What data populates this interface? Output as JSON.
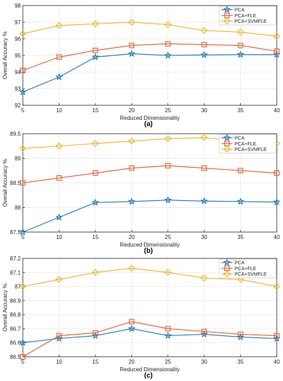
{
  "colors": {
    "pca": "#1f77b4",
    "pca_fle": "#e8582a",
    "pca_svmfle": "#f0b323",
    "axis": "#262626",
    "grid": "#e6e6e6"
  },
  "chart_data": [
    {
      "type": "line",
      "panel_label": "(a)",
      "xlabel": "Reduced Dimensionality",
      "ylabel": "Overall Accuracy %",
      "x": [
        5,
        10,
        15,
        20,
        25,
        30,
        35,
        40
      ],
      "xlim": [
        5,
        40
      ],
      "ylim": [
        92,
        98
      ],
      "xticks": [
        5,
        10,
        15,
        20,
        25,
        30,
        35,
        40
      ],
      "yticks": [
        92,
        93,
        94,
        95,
        96,
        97,
        98
      ],
      "ytick_labels": [
        "92",
        "93",
        "94",
        "95",
        "96",
        "97",
        "98"
      ],
      "grid": true,
      "legend_position": "top-right",
      "series": [
        {
          "name": "PCA",
          "marker": "star",
          "values": [
            92.8,
            93.7,
            94.9,
            95.1,
            95.0,
            95.03,
            95.05,
            95.05
          ]
        },
        {
          "name": "PCA+FLE",
          "marker": "square",
          "values": [
            94.1,
            94.9,
            95.3,
            95.6,
            95.7,
            95.65,
            95.6,
            95.25
          ]
        },
        {
          "name": "PCA+SVMFLE",
          "marker": "diamond",
          "values": [
            96.3,
            96.8,
            96.9,
            97.0,
            96.85,
            96.5,
            96.4,
            96.15
          ]
        }
      ]
    },
    {
      "type": "line",
      "panel_label": "(b)",
      "xlabel": "Reduced Dimensionality",
      "ylabel": "Overall Accuracy %",
      "x": [
        5,
        10,
        15,
        20,
        25,
        30,
        35,
        40
      ],
      "xlim": [
        5,
        40
      ],
      "ylim": [
        87.5,
        89.5
      ],
      "xticks": [
        5,
        10,
        15,
        20,
        25,
        30,
        35,
        40
      ],
      "yticks": [
        87.5,
        88,
        88.5,
        89,
        89.5
      ],
      "ytick_labels": [
        "87.5",
        "88",
        "88.5",
        "89",
        "89.5"
      ],
      "grid": true,
      "legend_position": "top-right",
      "series": [
        {
          "name": "PCA",
          "marker": "star",
          "values": [
            87.5,
            87.8,
            88.1,
            88.12,
            88.15,
            88.13,
            88.12,
            88.11
          ]
        },
        {
          "name": "PCA+FLE",
          "marker": "square",
          "values": [
            88.5,
            88.6,
            88.7,
            88.8,
            88.85,
            88.8,
            88.75,
            88.7
          ]
        },
        {
          "name": "PCA+SVMFLE",
          "marker": "diamond",
          "values": [
            89.2,
            89.25,
            89.3,
            89.35,
            89.4,
            89.42,
            89.35,
            89.3
          ]
        }
      ]
    },
    {
      "type": "line",
      "panel_label": "(c)",
      "xlabel": "Reduced Dimensionality",
      "ylabel": "Overall Accuracy %",
      "x": [
        5,
        10,
        15,
        20,
        25,
        30,
        35,
        40
      ],
      "xlim": [
        5,
        40
      ],
      "ylim": [
        86.5,
        87.2
      ],
      "xticks": [
        5,
        10,
        15,
        20,
        25,
        30,
        35,
        40
      ],
      "yticks": [
        86.5,
        86.6,
        86.7,
        86.8,
        86.9,
        87.0,
        87.1,
        87.2
      ],
      "ytick_labels": [
        "86.5",
        "86.6",
        "86.7",
        "86.8",
        "86.9",
        "87",
        "87.1",
        "87.2"
      ],
      "grid": true,
      "legend_position": "top-right",
      "series": [
        {
          "name": "PCA",
          "marker": "star",
          "values": [
            86.6,
            86.63,
            86.65,
            86.7,
            86.65,
            86.66,
            86.64,
            86.63
          ]
        },
        {
          "name": "PCA+FLE",
          "marker": "square",
          "values": [
            86.5,
            86.65,
            86.67,
            86.75,
            86.7,
            86.68,
            86.66,
            86.65
          ]
        },
        {
          "name": "PCA+SVMFLE",
          "marker": "diamond",
          "values": [
            87.0,
            87.05,
            87.1,
            87.13,
            87.1,
            87.06,
            87.05,
            87.0
          ]
        }
      ]
    }
  ]
}
